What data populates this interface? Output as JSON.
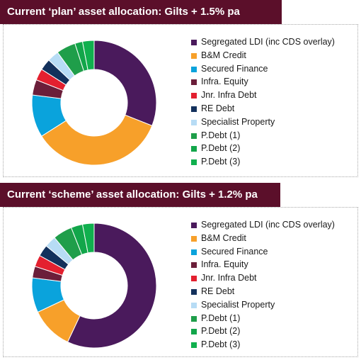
{
  "colors": {
    "title_bg": "#5b0f2a",
    "series": [
      "#4a1a5c",
      "#f7a02a",
      "#0aa3dc",
      "#6b1e3a",
      "#e3202f",
      "#13315c",
      "#b7dcf5",
      "#1f9e4a",
      "#12a64a",
      "#10b04e"
    ]
  },
  "chart_data": [
    {
      "type": "pie",
      "title": "Current ‘plan’ asset allocation: Gilts + 1.5% pa",
      "categories": [
        "Segregated LDI (inc CDS overlay)",
        "B&M Credit",
        "Secured Finance",
        "Infra. Equity",
        "Jnr. Infra Debt",
        "RE Debt",
        "Specialist Property",
        "P.Debt (1)",
        "P.Debt (2)",
        "P.Debt (3)"
      ],
      "values": [
        31,
        35,
        11,
        4,
        3,
        3,
        3,
        5,
        2,
        3
      ],
      "legend": "right"
    },
    {
      "type": "pie",
      "title": "Current ‘scheme’ asset allocation: Gilts + 1.2% pa",
      "categories": [
        "Segregated LDI (inc CDS overlay)",
        "B&M Credit",
        "Secured Finance",
        "Infra. Equity",
        "Jnr. Infra Debt",
        "RE Debt",
        "Specialist Property",
        "P.Debt (1)",
        "P.Debt (2)",
        "P.Debt (3)"
      ],
      "values": [
        57,
        11,
        9,
        3,
        3,
        3,
        3,
        5,
        3,
        3
      ],
      "legend": "right"
    }
  ]
}
